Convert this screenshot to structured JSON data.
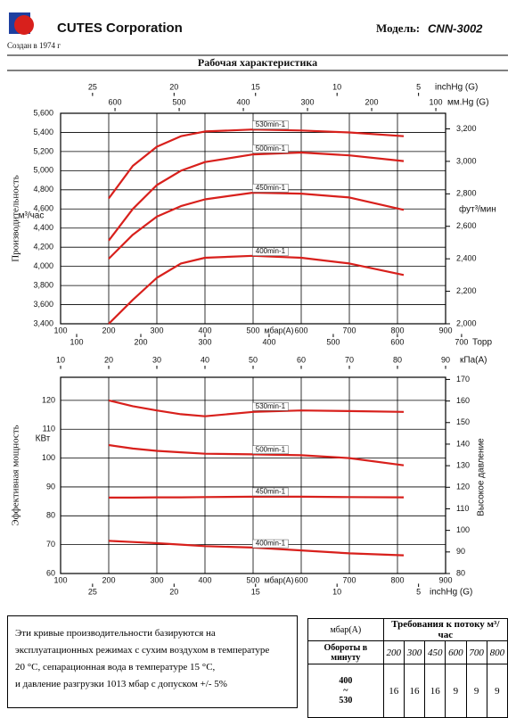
{
  "header": {
    "company": "CUTES Corporation",
    "founded": "Создан в 1974 г",
    "model_label": "Модель:",
    "model": "CNN-3002",
    "title": "Рабочая характеристика"
  },
  "chart_data": [
    {
      "type": "line",
      "xlabel": "мбар(A)",
      "ylabel": "Производительность",
      "yunit": "м³/час",
      "y2unit": "фут³/мин",
      "xlim": [
        100,
        900
      ],
      "xticks": [
        100,
        200,
        300,
        400,
        500,
        600,
        700,
        800,
        900
      ],
      "ylim": [
        3400,
        5600
      ],
      "yticks": [
        {
          "value": 3400,
          "label": "3,400"
        },
        {
          "value": 3600,
          "label": "3,600"
        },
        {
          "value": 3800,
          "label": "3,800"
        },
        {
          "value": 4000,
          "label": "4,000"
        },
        {
          "value": 4200,
          "label": "4,200"
        },
        {
          "value": 4400,
          "label": "4,400"
        },
        {
          "value": 4600,
          "label": "4,600"
        },
        {
          "value": 4800,
          "label": "4,800"
        },
        {
          "value": 5000,
          "label": "5,000"
        },
        {
          "value": 5200,
          "label": "5,200"
        },
        {
          "value": 5400,
          "label": "5,400"
        },
        {
          "value": 5600,
          "label": "5,600"
        }
      ],
      "y2lim": [
        2000,
        3296
      ],
      "y2ticks": [
        {
          "value": 2000,
          "label": "2,000"
        },
        {
          "value": 2200,
          "label": "2,200"
        },
        {
          "value": 2400,
          "label": "2,400"
        },
        {
          "value": 2600,
          "label": "2,600"
        },
        {
          "value": 2800,
          "label": "2,800"
        },
        {
          "value": 3000,
          "label": "3,000"
        },
        {
          "value": 3200,
          "label": "3,200"
        }
      ],
      "grid": true,
      "label_color": "#2a2ab0",
      "extra_axes": [
        {
          "label": "inchHg (G)",
          "position": "top",
          "lim": [
            26.96,
            3.34
          ],
          "ticks": [
            25,
            20,
            15,
            10,
            5
          ]
        },
        {
          "label": "мм.Hg (G)",
          "position": "top",
          "lim": [
            684.8,
            84.8
          ],
          "ticks": [
            600,
            500,
            400,
            300,
            200,
            100
          ]
        },
        {
          "label": "Торр",
          "position": "bottom",
          "lim": [
            75.0,
            675.1
          ],
          "ticks": [
            100,
            200,
            300,
            400,
            500,
            600,
            700
          ]
        }
      ],
      "x": [
        200,
        250,
        300,
        350,
        400,
        500,
        600,
        700,
        813
      ],
      "series": [
        {
          "name": "530min-1",
          "color": "#d8201c",
          "values": [
            4710,
            5050,
            5250,
            5360,
            5410,
            5430,
            5420,
            5400,
            5360
          ]
        },
        {
          "name": "500min-1",
          "color": "#d8201c",
          "values": [
            4270,
            4600,
            4850,
            5000,
            5090,
            5170,
            5190,
            5160,
            5100
          ]
        },
        {
          "name": "450min-1",
          "color": "#d8201c",
          "values": [
            4080,
            4330,
            4520,
            4630,
            4700,
            4770,
            4760,
            4720,
            4590
          ]
        },
        {
          "name": "400min-1",
          "color": "#d8201c",
          "values": [
            3400,
            3650,
            3880,
            4030,
            4090,
            4110,
            4090,
            4030,
            3910
          ]
        }
      ]
    },
    {
      "type": "line",
      "xlabel": "мбар(A)",
      "ylabel": "Эффективная мощность",
      "yunit": "КВт",
      "y2label": "Высокое давление",
      "xlim": [
        100,
        900
      ],
      "xticks": [
        100,
        200,
        300,
        400,
        500,
        600,
        700,
        800,
        900
      ],
      "ylim": [
        60,
        128
      ],
      "yticks": [
        60,
        70,
        80,
        90,
        100,
        110,
        120
      ],
      "y2lim": [
        80,
        171
      ],
      "y2ticks": [
        80,
        90,
        100,
        110,
        120,
        130,
        140,
        150,
        160,
        170
      ],
      "grid": true,
      "label_color": "#2a2ab0",
      "extra_axes": [
        {
          "label": "кПа(A)",
          "position": "top",
          "lim": [
            10,
            90
          ],
          "ticks": [
            10,
            20,
            30,
            40,
            50,
            60,
            70,
            80,
            90
          ]
        },
        {
          "label": "inchHg (G)",
          "position": "bottom",
          "lim": [
            26.96,
            3.34
          ],
          "ticks": [
            25,
            20,
            15,
            10,
            5
          ]
        }
      ],
      "x": [
        200,
        250,
        300,
        350,
        400,
        500,
        600,
        700,
        813
      ],
      "series": [
        {
          "name": "530min-1",
          "color": "#d8201c",
          "values": [
            120,
            118,
            116.5,
            115.2,
            114.5,
            116,
            116.5,
            116.3,
            116
          ]
        },
        {
          "name": "500min-1",
          "color": "#d8201c",
          "values": [
            104.5,
            103.3,
            102.5,
            102,
            101.5,
            101.3,
            101,
            100,
            97.5
          ]
        },
        {
          "name": "450min-1",
          "color": "#d8201c",
          "values": [
            86.3,
            86.3,
            86.4,
            86.4,
            86.5,
            86.6,
            86.6,
            86.5,
            86.4
          ]
        },
        {
          "name": "400min-1",
          "color": "#d8201c",
          "values": [
            71.3,
            70.9,
            70.5,
            70,
            69.5,
            69,
            68,
            67,
            66.3
          ]
        }
      ]
    }
  ],
  "note": {
    "lines": [
      "Эти кривые производительности базируются на",
      "эксплуатационных режимах с сухим воздухом в температуре",
      "20 °C, сепарационная вода в температуре 15 °C,",
      "и давление разгрузки 1013 мбар с допуском +/- 5%"
    ]
  },
  "table": {
    "header": [
      "мбар(A)",
      "Требования к потоку м³/час"
    ],
    "rows": [
      [
        "Обороты в минуту",
        200,
        300,
        450,
        600,
        700,
        800
      ],
      [
        "400\n~\n530",
        16,
        16,
        16,
        9,
        9,
        9
      ]
    ]
  }
}
